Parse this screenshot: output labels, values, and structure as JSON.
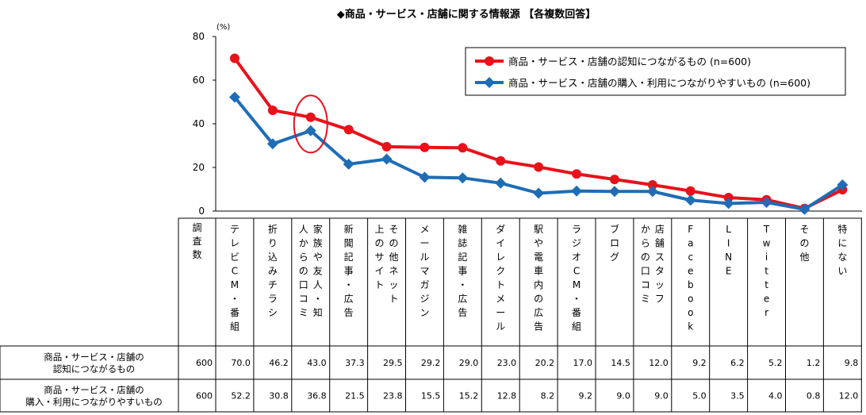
{
  "chart_data": {
    "type": "line",
    "title": "◆商品・サービス・店舗に関する情報源 【各複数回答】",
    "unit_label": "(%)",
    "ylim": [
      0,
      80
    ],
    "yticks": [
      0,
      20,
      40,
      60,
      80
    ],
    "legend_position": "top-right",
    "table_header": "調査数",
    "categories": [
      "テレビCM・番組",
      "折り込みチラシ",
      "家族や友人・知人からの口コミ",
      "新聞記事・広告",
      "その他ネット上のサイト",
      "メールマガジン",
      "雑誌記事・広告",
      "ダイレクトメール",
      "駅や電車内の広告",
      "ラジオCM・番組",
      "ブログ",
      "店舗スタッフからの口コミ",
      "Facebook",
      "LINE",
      "Twitter",
      "その他",
      "特にない"
    ],
    "series": [
      {
        "name": "商品・サービス・店舗の認知につながるもの (n=600)",
        "row_label": [
          "商品・サービス・店舗の",
          "認知につながるもの"
        ],
        "n": "600",
        "color": "#e8121b",
        "marker": "circle",
        "values": [
          70.0,
          46.2,
          43.0,
          37.3,
          29.5,
          29.2,
          29.0,
          23.0,
          20.2,
          17.0,
          14.5,
          12.0,
          9.2,
          6.2,
          5.2,
          1.2,
          9.8
        ],
        "labels": [
          "70.0",
          "46.2",
          "43.0",
          "37.3",
          "29.5",
          "29.2",
          "29.0",
          "23.0",
          "20.2",
          "17.0",
          "14.5",
          "12.0",
          "9.2",
          "6.2",
          "5.2",
          "1.2",
          "9.8"
        ]
      },
      {
        "name": "商品・サービス・店舗の購入・利用につながりやすいもの (n=600)",
        "row_label": [
          "商品・サービス・店舗の",
          "購入・利用につながりやすいもの"
        ],
        "n": "600",
        "color": "#1f6db5",
        "marker": "diamond",
        "values": [
          52.2,
          30.8,
          36.8,
          21.5,
          23.8,
          15.5,
          15.2,
          12.8,
          8.2,
          9.2,
          9.0,
          9.0,
          5.0,
          3.5,
          4.0,
          0.8,
          12.0
        ],
        "labels": [
          "52.2",
          "30.8",
          "36.8",
          "21.5",
          "23.8",
          "15.5",
          "15.2",
          "12.8",
          "8.2",
          "9.2",
          "9.0",
          "9.0",
          "5.0",
          "3.5",
          "4.0",
          "0.8",
          "12.0"
        ]
      }
    ],
    "highlight_category_index": 2,
    "highlight_color": "#e8121b"
  }
}
